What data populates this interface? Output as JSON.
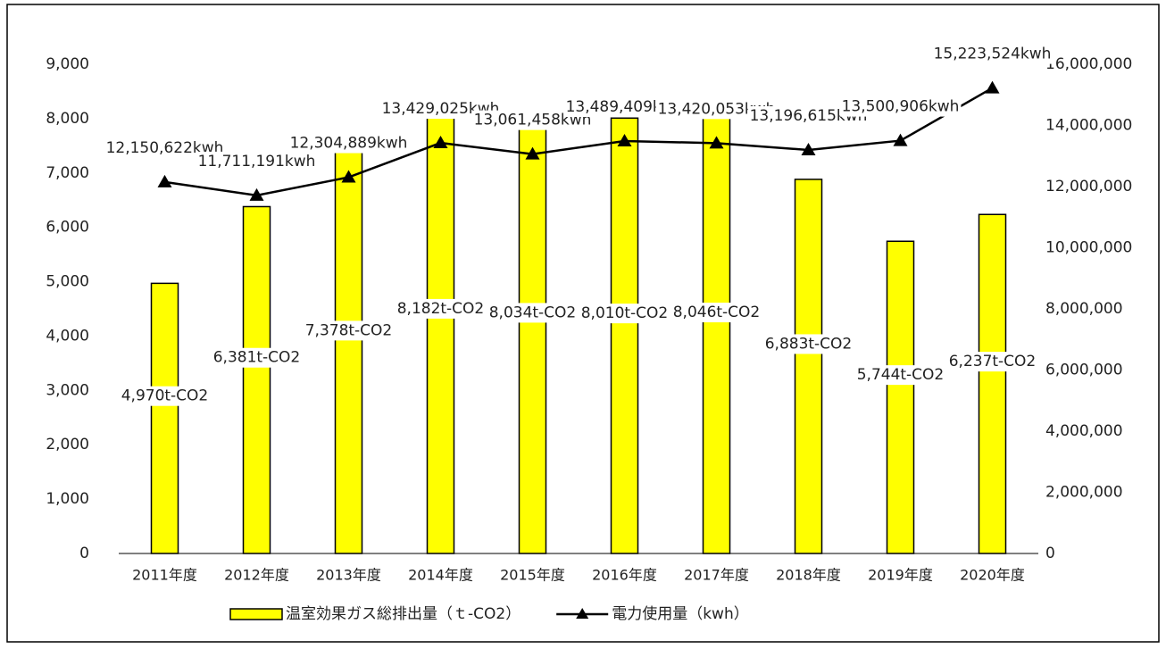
{
  "chart_data": {
    "type": "combo",
    "categories": [
      "2011年度",
      "2012年度",
      "2013年度",
      "2014年度",
      "2015年度",
      "2016年度",
      "2017年度",
      "2018年度",
      "2019年度",
      "2020年度"
    ],
    "series": [
      {
        "name": "温室効果ガス総排出量（ｔ-CO2）",
        "type": "bar",
        "color": "#ffff00",
        "axis": "y",
        "values": [
          4970,
          6381,
          7378,
          8182,
          8034,
          8010,
          8046,
          6883,
          5744,
          6237
        ],
        "value_labels": [
          "4,970t-CO2",
          "6,381t-CO2",
          "7,378t-CO2",
          "8,182t-CO2",
          "8,034t-CO2",
          "8,010t-CO2",
          "8,046t-CO2",
          "6,883t-CO2",
          "5,744t-CO2",
          "6,237t-CO2"
        ]
      },
      {
        "name": "電力使用量（kwh）",
        "type": "line",
        "color": "#000000",
        "axis": "y2",
        "values": [
          12150622,
          11711191,
          12304889,
          13429025,
          13061458,
          13489409,
          13420053,
          13196615,
          13500906,
          15223524
        ],
        "value_labels": [
          "12,150,622kwh",
          "11,711,191kwh",
          "12,304,889kwh",
          "13,429,025kwh",
          "13,061,458kwh",
          "13,489,409kwh",
          "13,420,053kwh",
          "13,196,615kwh",
          "13,500,906kwh",
          "15,223,524kwh"
        ]
      }
    ],
    "ylim": [
      0,
      9000
    ],
    "yticks": [
      0,
      {
        "value": 1000,
        "label": "1,000"
      },
      {
        "value": 2000,
        "label": "2,000"
      },
      {
        "value": 3000,
        "label": "3,000"
      },
      {
        "value": 4000,
        "label": "4,000"
      },
      {
        "value": 5000,
        "label": "5,000"
      },
      {
        "value": 6000,
        "label": "6,000"
      },
      {
        "value": 7000,
        "label": "7,000"
      },
      {
        "value": 8000,
        "label": "8,000"
      },
      {
        "value": 9000,
        "label": "9,000"
      }
    ],
    "y2lim": [
      0,
      16000000
    ],
    "y2ticks": [
      0,
      {
        "value": 2000000,
        "label": "2,000,000"
      },
      {
        "value": 4000000,
        "label": "4,000,000"
      },
      {
        "value": 6000000,
        "label": "6,000,000"
      },
      {
        "value": 8000000,
        "label": "8,000,000"
      },
      {
        "value": 10000000,
        "label": "10,000,000"
      },
      {
        "value": 12000000,
        "label": "12,000,000"
      },
      {
        "value": 14000000,
        "label": "14,000,000"
      },
      {
        "value": 16000000,
        "label": "16,000,000"
      }
    ],
    "grid": false,
    "legend": "bottom"
  }
}
